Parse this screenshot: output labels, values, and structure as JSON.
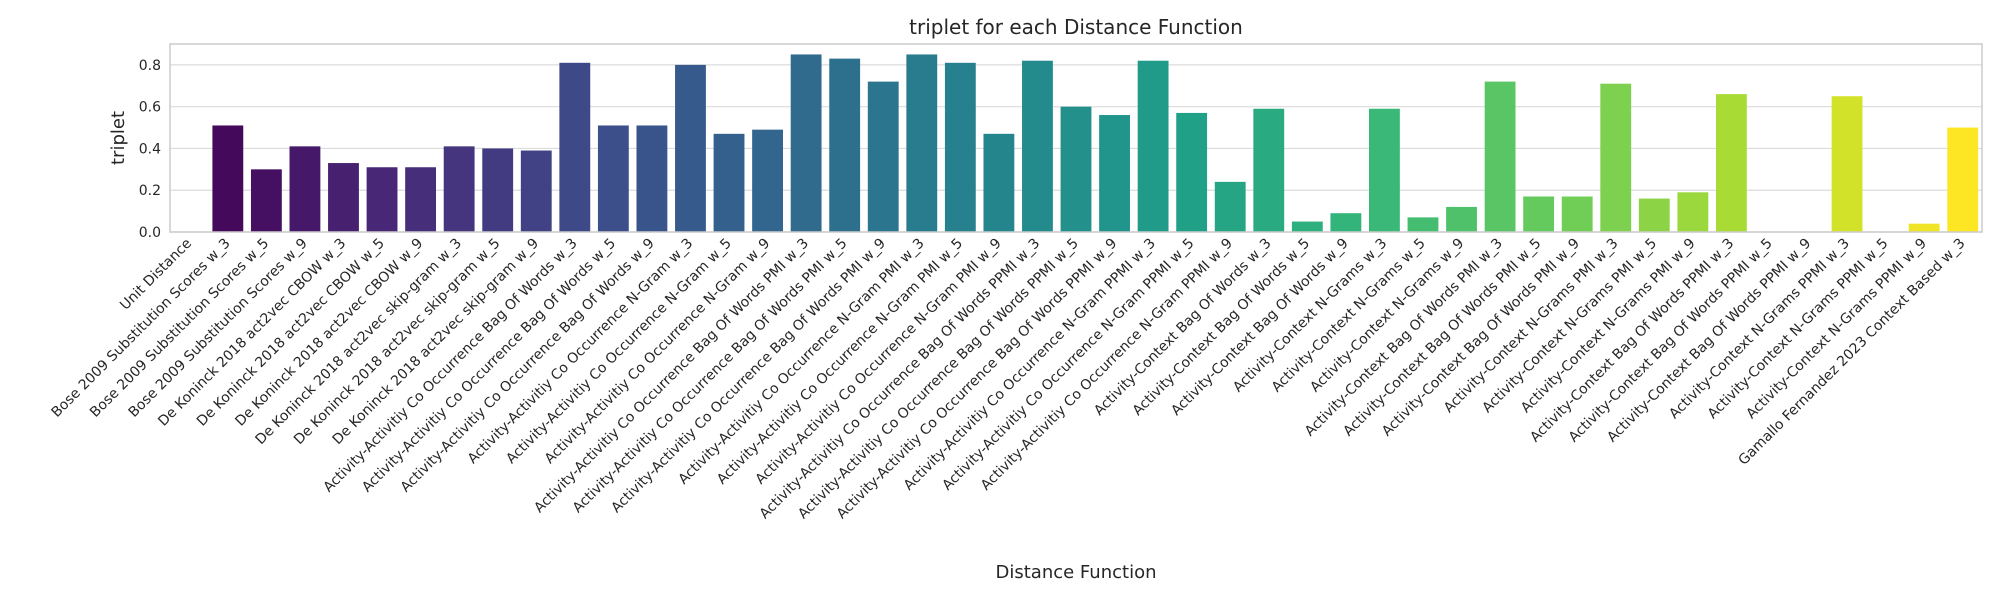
{
  "chart_data": {
    "type": "bar",
    "title": "triplet for each Distance Function",
    "xlabel": "Distance Function",
    "ylabel": "triplet",
    "ylim": [
      0,
      0.9
    ],
    "yticks": [
      0.0,
      0.2,
      0.4,
      0.6,
      0.8
    ],
    "ytick_labels": [
      "0.0",
      "0.2",
      "0.4",
      "0.6",
      "0.8"
    ],
    "grid": "horizontal",
    "palette": "viridis",
    "categories": [
      "Unit Distance",
      "Bose 2009 Substitution Scores w_3",
      "Bose 2009 Substitution Scores w_5",
      "Bose 2009 Substitution Scores w_9",
      "De Koninck 2018 act2vec CBOW w_3",
      "De Koninck 2018 act2vec CBOW w_5",
      "De Koninck 2018 act2vec CBOW w_9",
      "De Koninck 2018 act2vec skip-gram w_3",
      "De Koninck 2018 act2vec skip-gram w_5",
      "De Koninck 2018 act2vec skip-gram w_9",
      "Activity-Activitiy Co Occurrence Bag Of Words w_3",
      "Activity-Activitiy Co Occurrence Bag Of Words w_5",
      "Activity-Activitiy Co Occurrence Bag Of Words w_9",
      "Activity-Activitiy Co Occurrence N-Gram w_3",
      "Activity-Activitiy Co Occurrence N-Gram w_5",
      "Activity-Activitiy Co Occurrence N-Gram w_9",
      "Activity-Activitiy Co Occurrence Bag Of Words PMI w_3",
      "Activity-Activitiy Co Occurrence Bag Of Words PMI w_5",
      "Activity-Activitiy Co Occurrence Bag Of Words PMI w_9",
      "Activity-Activitiy Co Occurrence N-Gram PMI w_3",
      "Activity-Activitiy Co Occurrence N-Gram PMI w_5",
      "Activity-Activitiy Co Occurrence N-Gram PMI w_9",
      "Activity-Activitiy Co Occurrence Bag Of Words PPMI w_3",
      "Activity-Activitiy Co Occurrence Bag Of Words PPMI w_5",
      "Activity-Activitiy Co Occurrence Bag Of Words PPMI w_9",
      "Activity-Activitiy Co Occurrence N-Gram PPMI w_3",
      "Activity-Activitiy Co Occurrence N-Gram PPMI w_5",
      "Activity-Activitiy Co Occurrence N-Gram PPMI w_9",
      "Activity-Context Bag Of Words w_3",
      "Activity-Context Bag Of Words w_5",
      "Activity-Context Bag Of Words w_9",
      "Activity-Context N-Grams w_3",
      "Activity-Context N-Grams w_5",
      "Activity-Context N-Grams w_9",
      "Activity-Context Bag Of Words PMI w_3",
      "Activity-Context Bag Of Words PMI w_5",
      "Activity-Context Bag Of Words PMI w_9",
      "Activity-Context N-Grams PMI w_3",
      "Activity-Context N-Grams PMI w_5",
      "Activity-Context N-Grams PMI w_9",
      "Activity-Context Bag Of Words PPMI w_3",
      "Activity-Context Bag Of Words PPMI w_5",
      "Activity-Context Bag Of Words PPMI w_9",
      "Activity-Context N-Grams PPMI w_3",
      "Activity-Context N-Grams PPMI w_5",
      "Activity-Context N-Grams PPMI w_9",
      "Gamallo Fernandez 2023 Context Based w_3"
    ],
    "values": [
      0.0,
      0.51,
      0.3,
      0.41,
      0.33,
      0.31,
      0.31,
      0.41,
      0.4,
      0.39,
      0.81,
      0.51,
      0.51,
      0.8,
      0.47,
      0.49,
      0.85,
      0.83,
      0.72,
      0.85,
      0.81,
      0.47,
      0.82,
      0.6,
      0.56,
      0.82,
      0.57,
      0.24,
      0.59,
      0.05,
      0.09,
      0.59,
      0.07,
      0.12,
      0.72,
      0.17,
      0.17,
      0.71,
      0.16,
      0.19,
      0.66,
      0.0,
      0.0,
      0.65,
      0.0,
      0.04,
      0.5
    ]
  }
}
